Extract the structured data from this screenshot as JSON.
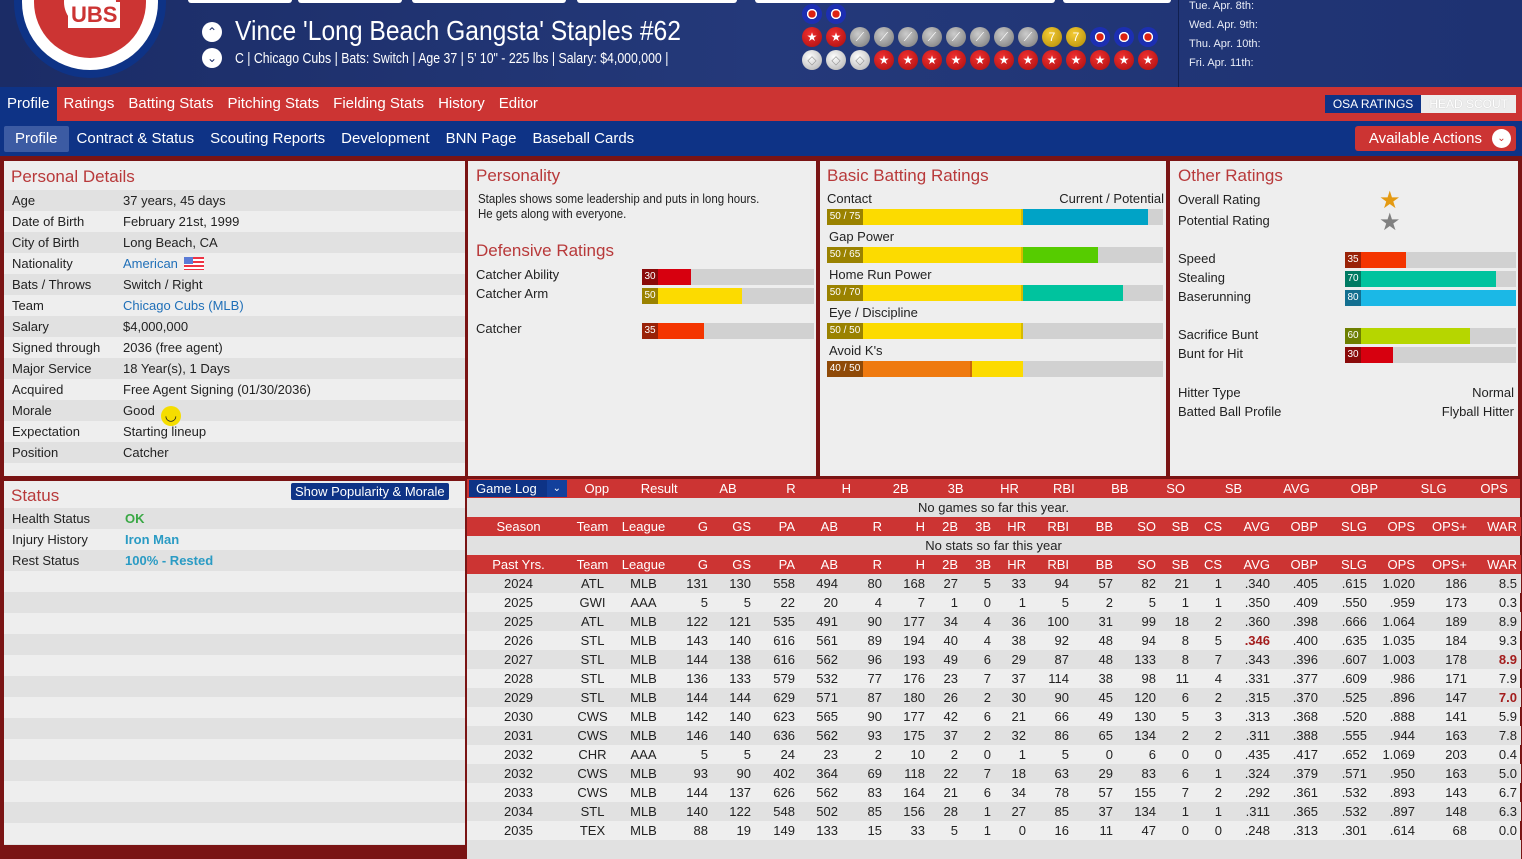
{
  "header": {
    "player_name": "Vince 'Long Beach Gangsta' Staples  #62",
    "subtitle": "C | Chicago Cubs  |  Bats: Switch  |  Age 37  |  5' 10\" - 225 lbs  |  Salary: $4,000,000  |",
    "logo_text": "CUBS",
    "prev_icon": "chevron-up-icon",
    "next_icon": "chevron-down-icon",
    "medal_rows": [
      [
        "blue",
        "blue"
      ],
      [
        "star",
        "star",
        "gray",
        "gray",
        "gray",
        "gray",
        "gray",
        "gray",
        "gray",
        "gray",
        "gold",
        "gold",
        "blue",
        "blue",
        "blue"
      ],
      [
        "white",
        "white",
        "white",
        "star",
        "star",
        "star",
        "star",
        "star",
        "star",
        "star",
        "star",
        "star",
        "star",
        "star",
        "star"
      ]
    ],
    "dates": [
      "Tue. Apr. 8th:",
      "Wed. Apr. 9th:",
      "Thu. Apr. 10th:",
      "Fri. Apr. 11th:"
    ]
  },
  "nav": {
    "tabs": [
      "Profile",
      "Ratings",
      "Batting Stats",
      "Pitching Stats",
      "Fielding Stats",
      "History",
      "Editor"
    ],
    "osa": "OSA RATINGS",
    "scout": "HEAD SCOUT",
    "subtabs": [
      "Profile",
      "Contract & Status",
      "Scouting Reports",
      "Development",
      "BNN Page",
      "Baseball Cards"
    ],
    "actions": "Available Actions"
  },
  "personal": {
    "title": "Personal Details",
    "rows": [
      {
        "label": "Age",
        "value": "37 years, 45 days"
      },
      {
        "label": "Date of Birth",
        "value": "February 21st, 1999"
      },
      {
        "label": "City of Birth",
        "value": "Long Beach, CA"
      },
      {
        "label": "Nationality",
        "value": "American",
        "link": true,
        "flag": true
      },
      {
        "label": "Bats / Throws",
        "value": "Switch / Right"
      },
      {
        "label": "Team",
        "value": "Chicago Cubs (MLB)",
        "link": true
      },
      {
        "label": "Salary",
        "value": "$4,000,000"
      },
      {
        "label": "Signed through",
        "value": "2036 (free agent)"
      },
      {
        "label": "Major Service",
        "value": "18 Year(s), 1 Days"
      },
      {
        "label": "Acquired",
        "value": "Free Agent Signing (01/30/2036)"
      },
      {
        "label": "Morale",
        "value": "Good",
        "smile": true
      },
      {
        "label": "Expectation",
        "value": "Starting lineup"
      },
      {
        "label": "Position",
        "value": "Catcher"
      }
    ]
  },
  "status": {
    "title": "Status",
    "button": "Show Popularity & Morale",
    "rows": [
      {
        "label": "Health Status",
        "value": "OK",
        "color": "#3aa845"
      },
      {
        "label": "Injury History",
        "value": "Iron Man",
        "color": "#2a9bc4"
      },
      {
        "label": "Rest Status",
        "value": "100% - Rested",
        "color": "#2a9bc4"
      }
    ]
  },
  "personality": {
    "title": "Personality",
    "text1": "Staples shows some leadership and puts in long hours.",
    "text2": "He gets along with everyone."
  },
  "defense": {
    "title": "Defensive Ratings",
    "rows": [
      {
        "label": "Catcher Ability",
        "value": 30,
        "color": "#d7000f",
        "dark": "#8a0a0a"
      },
      {
        "label": "Catcher Arm",
        "value": 50,
        "color": "#fcdb00",
        "dark": "#9a8200"
      },
      {
        "label": "Catcher",
        "value": 35,
        "color": "#f43500",
        "dark": "#992208"
      }
    ]
  },
  "batting": {
    "title": "Basic Batting Ratings",
    "cp_label": "Current / Potential",
    "rows": [
      {
        "label": "Contact",
        "cur": 50,
        "pot": 75,
        "text": "50 / 75",
        "color": "#fcdb00",
        "potcolor": "#00a3c6",
        "dark": "#9a8200"
      },
      {
        "label": "Gap Power",
        "cur": 50,
        "pot": 65,
        "text": "50 / 65",
        "color": "#fcdb00",
        "potcolor": "#56cc00",
        "dark": "#9a8200"
      },
      {
        "label": "Home Run Power",
        "cur": 50,
        "pot": 70,
        "text": "50 / 70",
        "color": "#fcdb00",
        "potcolor": "#00c39e",
        "dark": "#9a8200"
      },
      {
        "label": "Eye / Discipline",
        "cur": 50,
        "pot": 50,
        "text": "50 / 50",
        "color": "#fcdb00",
        "potcolor": "#fcdb00",
        "dark": "#9a8200"
      },
      {
        "label": "Avoid K's",
        "cur": 40,
        "pot": 50,
        "text": "40 / 50",
        "color": "#ef7a10",
        "potcolor": "#fcdb00",
        "dark": "#8f4a08"
      }
    ]
  },
  "other": {
    "title": "Other Ratings",
    "overall_label": "Overall Rating",
    "potential_label": "Potential Rating",
    "star_gold": "#e49a12",
    "star_gray": "#808080",
    "bars": [
      {
        "label": "Speed",
        "value": 35,
        "color": "#f43500",
        "dark": "#992208"
      },
      {
        "label": "Stealing",
        "value": 70,
        "color": "#00c39e",
        "dark": "#007a63"
      },
      {
        "label": "Baserunning",
        "value": 80,
        "color": "#1bb8e6",
        "dark": "#136f90"
      },
      {
        "label": "Sacrifice Bunt",
        "value": 60,
        "color": "#b6d600",
        "dark": "#6d7f00"
      },
      {
        "label": "Bunt for Hit",
        "value": 30,
        "color": "#d7000f",
        "dark": "#8a0a0a"
      }
    ],
    "hitter_type_label": "Hitter Type",
    "hitter_type": "Normal",
    "batted_ball_label": "Batted Ball Profile",
    "batted_ball": "Flyball Hitter"
  },
  "gamelog": {
    "dropdown": "Game Log",
    "headers": [
      "Opp",
      "Result",
      "AB",
      "R",
      "H",
      "2B",
      "3B",
      "HR",
      "RBI",
      "BB",
      "SO",
      "SB",
      "AVG",
      "OBP",
      "SLG",
      "OPS"
    ],
    "empty": "No games so far this year.",
    "season_headers": [
      "Season",
      "Team",
      "League",
      "G",
      "GS",
      "PA",
      "AB",
      "R",
      "H",
      "2B",
      "3B",
      "HR",
      "RBI",
      "BB",
      "SO",
      "SB",
      "CS",
      "AVG",
      "OBP",
      "SLG",
      "OPS",
      "OPS+",
      "WAR"
    ],
    "season_empty": "No stats so far this year",
    "past_headers": [
      "Past Yrs.",
      "Team",
      "League",
      "G",
      "GS",
      "PA",
      "AB",
      "R",
      "H",
      "2B",
      "3B",
      "HR",
      "RBI",
      "BB",
      "SO",
      "SB",
      "CS",
      "AVG",
      "OBP",
      "SLG",
      "OPS",
      "OPS+",
      "WAR"
    ],
    "past": [
      [
        "2024",
        "ATL",
        "MLB",
        "131",
        "130",
        "558",
        "494",
        "80",
        "168",
        "27",
        "5",
        "33",
        "94",
        "57",
        "82",
        "21",
        "1",
        ".340",
        ".405",
        ".615",
        "1.020",
        "186",
        "8.5"
      ],
      [
        "2025",
        "GWI",
        "AAA",
        "5",
        "5",
        "22",
        "20",
        "4",
        "7",
        "1",
        "0",
        "1",
        "5",
        "2",
        "5",
        "1",
        "1",
        ".350",
        ".409",
        ".550",
        ".959",
        "173",
        "0.3"
      ],
      [
        "2025",
        "ATL",
        "MLB",
        "122",
        "121",
        "535",
        "491",
        "90",
        "177",
        "34",
        "4",
        "36",
        "100",
        "31",
        "99",
        "18",
        "2",
        ".360",
        ".398",
        ".666",
        "1.064",
        "189",
        "8.9"
      ],
      [
        "2026",
        "STL",
        "MLB",
        "143",
        "140",
        "616",
        "561",
        "89",
        "194",
        "40",
        "4",
        "38",
        "92",
        "48",
        "94",
        "8",
        "5",
        ".346",
        ".400",
        ".635",
        "1.035",
        "184",
        "9.3"
      ],
      [
        "2027",
        "STL",
        "MLB",
        "144",
        "138",
        "616",
        "562",
        "96",
        "193",
        "49",
        "6",
        "29",
        "87",
        "48",
        "133",
        "8",
        "7",
        ".343",
        ".396",
        ".607",
        "1.003",
        "178",
        "8.9"
      ],
      [
        "2028",
        "STL",
        "MLB",
        "136",
        "133",
        "579",
        "532",
        "77",
        "176",
        "23",
        "7",
        "37",
        "114",
        "38",
        "98",
        "11",
        "4",
        ".331",
        ".377",
        ".609",
        ".986",
        "171",
        "7.9"
      ],
      [
        "2029",
        "STL",
        "MLB",
        "144",
        "144",
        "629",
        "571",
        "87",
        "180",
        "26",
        "2",
        "30",
        "90",
        "45",
        "120",
        "6",
        "2",
        ".315",
        ".370",
        ".525",
        ".896",
        "147",
        "7.0"
      ],
      [
        "2030",
        "CWS",
        "MLB",
        "142",
        "140",
        "623",
        "565",
        "90",
        "177",
        "42",
        "6",
        "21",
        "66",
        "49",
        "130",
        "5",
        "3",
        ".313",
        ".368",
        ".520",
        ".888",
        "141",
        "5.9"
      ],
      [
        "2031",
        "CWS",
        "MLB",
        "146",
        "140",
        "636",
        "562",
        "93",
        "175",
        "37",
        "2",
        "32",
        "86",
        "65",
        "134",
        "2",
        "2",
        ".311",
        ".388",
        ".555",
        ".944",
        "163",
        "7.8"
      ],
      [
        "2032",
        "CHR",
        "AAA",
        "5",
        "5",
        "24",
        "23",
        "2",
        "10",
        "2",
        "0",
        "1",
        "5",
        "0",
        "6",
        "0",
        "0",
        ".435",
        ".417",
        ".652",
        "1.069",
        "203",
        "0.4"
      ],
      [
        "2032",
        "CWS",
        "MLB",
        "93",
        "90",
        "402",
        "364",
        "69",
        "118",
        "22",
        "7",
        "18",
        "63",
        "29",
        "83",
        "6",
        "1",
        ".324",
        ".379",
        ".571",
        ".950",
        "163",
        "5.0"
      ],
      [
        "2033",
        "CWS",
        "MLB",
        "144",
        "137",
        "626",
        "562",
        "83",
        "164",
        "21",
        "6",
        "34",
        "78",
        "57",
        "155",
        "7",
        "2",
        ".292",
        ".361",
        ".532",
        ".893",
        "143",
        "6.7"
      ],
      [
        "2034",
        "STL",
        "MLB",
        "140",
        "122",
        "548",
        "502",
        "85",
        "156",
        "28",
        "1",
        "27",
        "85",
        "37",
        "134",
        "1",
        "1",
        ".311",
        ".365",
        ".532",
        ".897",
        "148",
        "6.3"
      ],
      [
        "2035",
        "TEX",
        "MLB",
        "88",
        "19",
        "149",
        "133",
        "15",
        "33",
        "5",
        "1",
        "0",
        "16",
        "11",
        "47",
        "0",
        "0",
        ".248",
        ".313",
        ".301",
        ".614",
        "68",
        "0.0"
      ]
    ],
    "highlights": [
      [
        3,
        17
      ],
      [
        4,
        22
      ],
      [
        6,
        22
      ]
    ]
  }
}
